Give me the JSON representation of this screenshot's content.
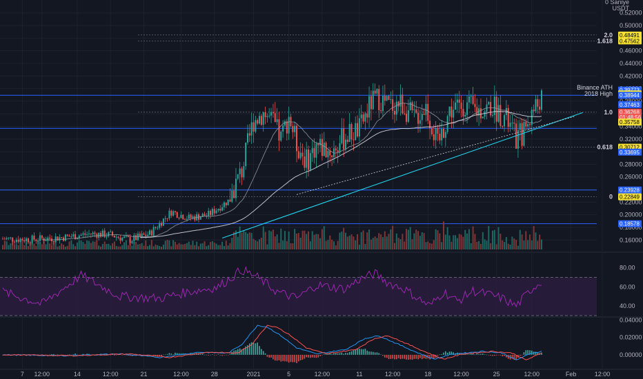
{
  "header": {
    "currency_line1": "0 Saniye",
    "currency_line2": "USDT"
  },
  "chart_data": [
    {
      "type": "candlestick",
      "title": "",
      "ylim": [
        0.145,
        0.535
      ],
      "price_axis_ticks": [
        "0.52000",
        "0.50000",
        "0.48000",
        "0.46000",
        "0.44000",
        "0.42000",
        "0.40000",
        "0.38000",
        "0.36000",
        "0.34000",
        "0.32000",
        "0.30000",
        "0.28000",
        "0.26000",
        "0.24000",
        "0.22000",
        "0.20000",
        "0.18000",
        "0.16000"
      ],
      "x_ticks": [
        "7",
        "12:00",
        "14",
        "12:00",
        "21",
        "12:00",
        "28",
        "2021",
        "5",
        "12:00",
        "11",
        "12:00",
        "18",
        "12:00",
        "25",
        "12:00",
        "Feb",
        "12:00"
      ],
      "grid": true,
      "close_anchors": [
        [
          0,
          0.162
        ],
        [
          15,
          0.161
        ],
        [
          30,
          0.164
        ],
        [
          45,
          0.17
        ],
        [
          55,
          0.168
        ],
        [
          65,
          0.16
        ],
        [
          75,
          0.17
        ],
        [
          86,
          0.205
        ],
        [
          95,
          0.195
        ],
        [
          105,
          0.2
        ],
        [
          115,
          0.222
        ],
        [
          122,
          0.27
        ],
        [
          128,
          0.35
        ],
        [
          133,
          0.362
        ],
        [
          138,
          0.345
        ],
        [
          142,
          0.32
        ],
        [
          146,
          0.358
        ],
        [
          150,
          0.312
        ],
        [
          155,
          0.285
        ],
        [
          160,
          0.31
        ],
        [
          168,
          0.3
        ],
        [
          175,
          0.325
        ],
        [
          182,
          0.335
        ],
        [
          188,
          0.378
        ],
        [
          192,
          0.385
        ],
        [
          197,
          0.372
        ],
        [
          203,
          0.378
        ],
        [
          210,
          0.352
        ],
        [
          216,
          0.372
        ],
        [
          222,
          0.31
        ],
        [
          228,
          0.365
        ],
        [
          235,
          0.375
        ],
        [
          242,
          0.365
        ],
        [
          250,
          0.372
        ],
        [
          257,
          0.352
        ],
        [
          262,
          0.32
        ],
        [
          266,
          0.332
        ],
        [
          270,
          0.362
        ],
        [
          275,
          0.385
        ]
      ],
      "fib_levels": [
        {
          "label": "2.0",
          "price": 0.48491
        },
        {
          "label": "1.618",
          "price": 0.47562
        },
        {
          "label": "1.0",
          "price": 0.3626
        },
        {
          "label": "0.618",
          "price": 0.30712
        },
        {
          "label": "0",
          "price": 0.22849
        }
      ],
      "horizontal_lines": [
        0.38944,
        0.33695,
        0.23928,
        0.18578
      ],
      "annotations": [
        {
          "line1": "Binance ATH",
          "line2": "2018 High",
          "price": 0.38944
        }
      ],
      "price_tags": [
        {
          "text": "0.48491",
          "price": 0.48491,
          "bg": "#f5e136",
          "fg": "#000000"
        },
        {
          "text": "0.47562",
          "price": 0.47562,
          "bg": "#f5e136",
          "fg": "#000000"
        },
        {
          "text": "0.39773",
          "price": 0.39773,
          "bg": "#2962ff",
          "fg": "#ffffff"
        },
        {
          "text": "0.39161",
          "price": 0.39161,
          "bg": "#f5e136",
          "fg": "#000000"
        },
        {
          "text": "0.38944",
          "price": 0.38944,
          "bg": "#2962ff",
          "fg": "#ffffff"
        },
        {
          "text": "0.37463",
          "price": 0.37463,
          "bg": "#2962ff",
          "fg": "#ffffff"
        },
        {
          "text": "0.36268",
          "price": 0.36268,
          "bg": "#ef5350",
          "fg": "#ffffff"
        },
        {
          "text": "01:48:56",
          "price": 0.3546,
          "bg": "#ef5350",
          "fg": "#ffffff"
        },
        {
          "text": "0.35758",
          "price": 0.34702,
          "bg": "#f5e136",
          "fg": "#000000"
        },
        {
          "text": "0.30712",
          "price": 0.30712,
          "bg": "#f5e136",
          "fg": "#000000"
        },
        {
          "text": "0.33695",
          "price": 0.29926,
          "bg": "#2962ff",
          "fg": "#ffffff"
        },
        {
          "text": "0.23928",
          "price": 0.23928,
          "bg": "#2962ff",
          "fg": "#ffffff"
        },
        {
          "text": "0.22849",
          "price": 0.22849,
          "bg": "#f5e136",
          "fg": "#000000"
        },
        {
          "text": "0.18578",
          "price": 0.18578,
          "bg": "#2962ff",
          "fg": "#ffffff"
        }
      ]
    },
    {
      "type": "line",
      "title": "",
      "ylim": [
        30,
        92
      ],
      "ticks": [
        "80.00",
        "60.00",
        "40.00"
      ],
      "band": [
        70,
        30
      ],
      "anchors": [
        [
          0,
          55
        ],
        [
          20,
          42
        ],
        [
          40,
          72
        ],
        [
          60,
          50
        ],
        [
          80,
          48
        ],
        [
          95,
          55
        ],
        [
          110,
          60
        ],
        [
          122,
          78
        ],
        [
          130,
          70
        ],
        [
          140,
          55
        ],
        [
          150,
          48
        ],
        [
          160,
          62
        ],
        [
          175,
          58
        ],
        [
          182,
          68
        ],
        [
          190,
          74
        ],
        [
          197,
          64
        ],
        [
          205,
          58
        ],
        [
          212,
          48
        ],
        [
          218,
          40
        ],
        [
          225,
          55
        ],
        [
          232,
          45
        ],
        [
          240,
          56
        ],
        [
          248,
          52
        ],
        [
          255,
          48
        ],
        [
          262,
          40
        ],
        [
          270,
          58
        ],
        [
          275,
          66
        ]
      ]
    },
    {
      "type": "line",
      "title": "",
      "ylim": [
        -0.012,
        0.042
      ],
      "ticks": [
        "0.04000",
        "0.02000",
        "0.00000"
      ],
      "macd_anchors": [
        [
          0,
          0
        ],
        [
          30,
          -0.001
        ],
        [
          60,
          0.001
        ],
        [
          80,
          -0.003
        ],
        [
          100,
          0.003
        ],
        [
          115,
          0.002
        ],
        [
          122,
          0.012
        ],
        [
          130,
          0.034
        ],
        [
          135,
          0.032
        ],
        [
          142,
          0.022
        ],
        [
          150,
          0.008
        ],
        [
          160,
          0.001
        ],
        [
          175,
          0.006
        ],
        [
          185,
          0.019
        ],
        [
          192,
          0.022
        ],
        [
          200,
          0.014
        ],
        [
          210,
          0.004
        ],
        [
          220,
          -0.005
        ],
        [
          230,
          0.001
        ],
        [
          245,
          0.004
        ],
        [
          255,
          0.002
        ],
        [
          262,
          -0.006
        ],
        [
          270,
          0.002
        ],
        [
          275,
          0.004
        ]
      ],
      "signal_lag": 5
    }
  ]
}
